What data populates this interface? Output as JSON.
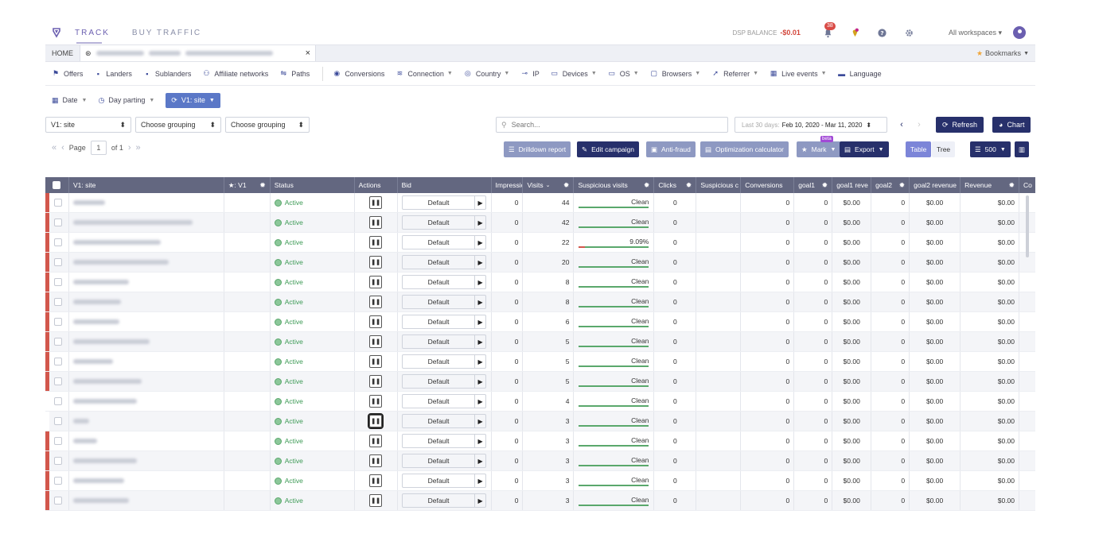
{
  "topnav": {
    "tabs": [
      {
        "label": "TRACK"
      },
      {
        "label": "BUY TRAFFIC"
      }
    ],
    "dsp_label": "DSP BALANCE",
    "dsp_value": "-$0.01",
    "notif_count": "38",
    "workspaces": "All workspaces",
    "icons": [
      "campaign-logo-icon",
      "bell-icon",
      "pin-icon",
      "help-icon",
      "gear-icon",
      "user-icon"
    ]
  },
  "tabstrip": {
    "home": "HOME",
    "close": "×",
    "bookmarks": "Bookmarks"
  },
  "entities": [
    {
      "label": "Offers",
      "icon": "flag-icon",
      "dropdown": false
    },
    {
      "label": "Landers",
      "icon": "lander-icon",
      "dropdown": false
    },
    {
      "label": "Sublanders",
      "icon": "sublander-icon",
      "dropdown": false
    },
    {
      "label": "Affiliate networks",
      "icon": "people-icon",
      "dropdown": false
    },
    {
      "label": "Paths",
      "icon": "paths-icon",
      "dropdown": false
    },
    {
      "label": "Conversions",
      "icon": "conversions-icon",
      "dropdown": false
    },
    {
      "label": "Connection",
      "icon": "wifi-icon",
      "dropdown": true
    },
    {
      "label": "Country",
      "icon": "globe-icon",
      "dropdown": true
    },
    {
      "label": "IP",
      "icon": "ip-icon",
      "dropdown": false
    },
    {
      "label": "Devices",
      "icon": "devices-icon",
      "dropdown": true
    },
    {
      "label": "OS",
      "icon": "monitor-icon",
      "dropdown": true
    },
    {
      "label": "Browsers",
      "icon": "browser-icon",
      "dropdown": true
    },
    {
      "label": "Referrer",
      "icon": "referrer-icon",
      "dropdown": true
    },
    {
      "label": "Live events",
      "icon": "live-events-icon",
      "dropdown": true
    },
    {
      "label": "Language",
      "icon": "language-icon",
      "dropdown": false
    }
  ],
  "filters": {
    "date": "Date",
    "dayparting": "Day parting",
    "grouping": "V1: site"
  },
  "selects": {
    "s1": "V1: site",
    "s2": "Choose grouping",
    "s3": "Choose grouping",
    "search_placeholder": "Search...",
    "date_label": "Last 30 days:",
    "date_value": "Feb 10, 2020 - Mar 11, 2020",
    "refresh": "Refresh",
    "chart": "Chart"
  },
  "pager": {
    "page_label": "Page",
    "page": "1",
    "of": "of 1"
  },
  "toolbar": {
    "drilldown": "Drilldown report",
    "edit": "Edit campaign",
    "antifraud": "Anti-fraud",
    "optimization": "Optimization calculator",
    "mark": "Mark",
    "beta": "beta",
    "export": "Export",
    "table": "Table",
    "tree": "Tree",
    "rows": "500"
  },
  "table": {
    "headers": {
      "v1": "V1: site",
      "star": "★: V1",
      "status": "Status",
      "actions": "Actions",
      "bid": "Bid",
      "impressions": "Impressio",
      "visits": "Visits",
      "suspicious": "Suspicious visits",
      "clicks": "Clicks",
      "suspicious_c": "Suspicious c",
      "conversions": "Conversions",
      "goal1": "goal1",
      "goal1_rev": "goal1 reve",
      "goal2": "goal2",
      "goal2_rev": "goal2 revenue",
      "revenue": "Revenue",
      "co": "Co"
    },
    "rows": [
      {
        "status": "Active",
        "bid": "Default",
        "impressions": "0",
        "visits": "44",
        "susp": "Clean",
        "susp_red": 0,
        "clicks": "0",
        "conversions": "0",
        "goal1": "0",
        "goal1_rev": "$0.00",
        "goal2": "0",
        "goal2_rev": "$0.00",
        "revenue": "$0.00"
      },
      {
        "status": "Active",
        "bid": "Default",
        "impressions": "0",
        "visits": "42",
        "susp": "Clean",
        "susp_red": 0,
        "clicks": "0",
        "conversions": "0",
        "goal1": "0",
        "goal1_rev": "$0.00",
        "goal2": "0",
        "goal2_rev": "$0.00",
        "revenue": "$0.00"
      },
      {
        "status": "Active",
        "bid": "Default",
        "impressions": "0",
        "visits": "22",
        "susp": "9.09%",
        "susp_red": 0.0909,
        "clicks": "0",
        "conversions": "0",
        "goal1": "0",
        "goal1_rev": "$0.00",
        "goal2": "0",
        "goal2_rev": "$0.00",
        "revenue": "$0.00"
      },
      {
        "status": "Active",
        "bid": "Default",
        "impressions": "0",
        "visits": "20",
        "susp": "Clean",
        "susp_red": 0,
        "clicks": "0",
        "conversions": "0",
        "goal1": "0",
        "goal1_rev": "$0.00",
        "goal2": "0",
        "goal2_rev": "$0.00",
        "revenue": "$0.00"
      },
      {
        "status": "Active",
        "bid": "Default",
        "impressions": "0",
        "visits": "8",
        "susp": "Clean",
        "susp_red": 0,
        "clicks": "0",
        "conversions": "0",
        "goal1": "0",
        "goal1_rev": "$0.00",
        "goal2": "0",
        "goal2_rev": "$0.00",
        "revenue": "$0.00"
      },
      {
        "status": "Active",
        "bid": "Default",
        "impressions": "0",
        "visits": "8",
        "susp": "Clean",
        "susp_red": 0,
        "clicks": "0",
        "conversions": "0",
        "goal1": "0",
        "goal1_rev": "$0.00",
        "goal2": "0",
        "goal2_rev": "$0.00",
        "revenue": "$0.00"
      },
      {
        "status": "Active",
        "bid": "Default",
        "impressions": "0",
        "visits": "6",
        "susp": "Clean",
        "susp_red": 0,
        "clicks": "0",
        "conversions": "0",
        "goal1": "0",
        "goal1_rev": "$0.00",
        "goal2": "0",
        "goal2_rev": "$0.00",
        "revenue": "$0.00"
      },
      {
        "status": "Active",
        "bid": "Default",
        "impressions": "0",
        "visits": "5",
        "susp": "Clean",
        "susp_red": 0,
        "clicks": "0",
        "conversions": "0",
        "goal1": "0",
        "goal1_rev": "$0.00",
        "goal2": "0",
        "goal2_rev": "$0.00",
        "revenue": "$0.00"
      },
      {
        "status": "Active",
        "bid": "Default",
        "impressions": "0",
        "visits": "5",
        "susp": "Clean",
        "susp_red": 0,
        "clicks": "0",
        "conversions": "0",
        "goal1": "0",
        "goal1_rev": "$0.00",
        "goal2": "0",
        "goal2_rev": "$0.00",
        "revenue": "$0.00"
      },
      {
        "status": "Active",
        "bid": "Default",
        "impressions": "0",
        "visits": "5",
        "susp": "Clean",
        "susp_red": 0,
        "clicks": "0",
        "conversions": "0",
        "goal1": "0",
        "goal1_rev": "$0.00",
        "goal2": "0",
        "goal2_rev": "$0.00",
        "revenue": "$0.00"
      },
      {
        "status": "Active",
        "bid": "Default",
        "impressions": "0",
        "visits": "4",
        "susp": "Clean",
        "susp_red": 0,
        "clicks": "0",
        "conversions": "0",
        "goal1": "0",
        "goal1_rev": "$0.00",
        "goal2": "0",
        "goal2_rev": "$0.00",
        "revenue": "$0.00"
      },
      {
        "status": "Active",
        "bid": "Default",
        "impressions": "0",
        "visits": "3",
        "susp": "Clean",
        "susp_red": 0,
        "clicks": "0",
        "conversions": "0",
        "goal1": "0",
        "goal1_rev": "$0.00",
        "goal2": "0",
        "goal2_rev": "$0.00",
        "revenue": "$0.00"
      },
      {
        "status": "Active",
        "bid": "Default",
        "impressions": "0",
        "visits": "3",
        "susp": "Clean",
        "susp_red": 0,
        "clicks": "0",
        "conversions": "0",
        "goal1": "0",
        "goal1_rev": "$0.00",
        "goal2": "0",
        "goal2_rev": "$0.00",
        "revenue": "$0.00"
      },
      {
        "status": "Active",
        "bid": "Default",
        "impressions": "0",
        "visits": "3",
        "susp": "Clean",
        "susp_red": 0,
        "clicks": "0",
        "conversions": "0",
        "goal1": "0",
        "goal1_rev": "$0.00",
        "goal2": "0",
        "goal2_rev": "$0.00",
        "revenue": "$0.00"
      },
      {
        "status": "Active",
        "bid": "Default",
        "impressions": "0",
        "visits": "3",
        "susp": "Clean",
        "susp_red": 0,
        "clicks": "0",
        "conversions": "0",
        "goal1": "0",
        "goal1_rev": "$0.00",
        "goal2": "0",
        "goal2_rev": "$0.00",
        "revenue": "$0.00"
      },
      {
        "status": "Active",
        "bid": "Default",
        "impressions": "0",
        "visits": "3",
        "susp": "Clean",
        "susp_red": 0,
        "clicks": "0",
        "conversions": "0",
        "goal1": "0",
        "goal1_rev": "$0.00",
        "goal2": "0",
        "goal2_rev": "$0.00",
        "revenue": "$0.00"
      }
    ]
  },
  "colors": {
    "accent": "#6b5fb0",
    "dark_button": "#27306b",
    "header": "#636780",
    "active": "#3c9a55",
    "row_marker": "#d2574c"
  }
}
